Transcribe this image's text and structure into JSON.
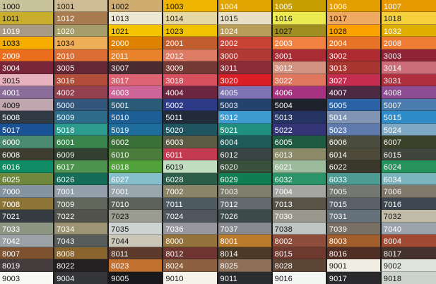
{
  "chart_data": {
    "type": "table",
    "description_of_layout": "RAL colour swatch grid, 8 columns by 23 rows, code label in top-left corner of each swatch",
    "grid_columns": 8,
    "grid_rows": 23,
    "separator_color": "#1c1c1c",
    "rows": [
      [
        {
          "code": "1000",
          "hex": "#C9C39B",
          "text": "dark"
        },
        {
          "code": "1001",
          "hex": "#D0BC94",
          "text": "dark"
        },
        {
          "code": "1002",
          "hex": "#CEAB6E",
          "text": "dark"
        },
        {
          "code": "1003",
          "hex": "#EFB500",
          "text": "dark"
        },
        {
          "code": "1004",
          "hex": "#E2A400",
          "text": "light"
        },
        {
          "code": "1005",
          "hex": "#C79D00",
          "text": "light"
        },
        {
          "code": "1006",
          "hex": "#E49E00",
          "text": "light"
        },
        {
          "code": "1007",
          "hex": "#E79A00",
          "text": "light"
        }
      ],
      [
        {
          "code": "1011",
          "hex": "#C9AE2D",
          "text": "dark"
        },
        {
          "code": "1012",
          "hex": "#A87C50",
          "text": "light"
        },
        {
          "code": "1013",
          "hex": "#EDE8D4",
          "text": "dark"
        },
        {
          "code": "1014",
          "hex": "#E6D8A4",
          "text": "dark"
        },
        {
          "code": "1015",
          "hex": "#E8DFC6",
          "text": "dark"
        },
        {
          "code": "1016",
          "hex": "#EDEB52",
          "text": "dark"
        },
        {
          "code": "1017",
          "hex": "#F0A960",
          "text": "dark"
        },
        {
          "code": "1018",
          "hex": "#F5D03C",
          "text": "dark"
        }
      ],
      [
        {
          "code": "1019",
          "hex": "#A89A84",
          "text": "light"
        },
        {
          "code": "1020",
          "hex": "#A59E6A",
          "text": "light"
        },
        {
          "code": "1021",
          "hex": "#F5C400",
          "text": "dark"
        },
        {
          "code": "1023",
          "hex": "#F0C300",
          "text": "dark"
        },
        {
          "code": "1024",
          "hex": "#B89C58",
          "text": "light"
        },
        {
          "code": "1027",
          "hex": "#A18E21",
          "text": "dark"
        },
        {
          "code": "1028",
          "hex": "#FCA200",
          "text": "dark"
        },
        {
          "code": "1032",
          "hex": "#DFAF00",
          "text": "light"
        }
      ],
      [
        {
          "code": "1033",
          "hex": "#F7AC00",
          "text": "dark"
        },
        {
          "code": "1034",
          "hex": "#EFAF58",
          "text": "dark"
        },
        {
          "code": "2000",
          "hex": "#DF8200",
          "text": "light"
        },
        {
          "code": "2001",
          "hex": "#C25E2E",
          "text": "light"
        },
        {
          "code": "2002",
          "hex": "#C84335",
          "text": "light"
        },
        {
          "code": "2003",
          "hex": "#F28143",
          "text": "light"
        },
        {
          "code": "2004",
          "hex": "#E77426",
          "text": "light"
        },
        {
          "code": "2008",
          "hex": "#EE7D33",
          "text": "light"
        }
      ],
      [
        {
          "code": "2009",
          "hex": "#EA6E1C",
          "text": "light"
        },
        {
          "code": "2010",
          "hex": "#DC6E35",
          "text": "light"
        },
        {
          "code": "2011",
          "hex": "#E8822B",
          "text": "light"
        },
        {
          "code": "2012",
          "hex": "#DD7B64",
          "text": "light"
        },
        {
          "code": "3000",
          "hex": "#B23A36",
          "text": "light"
        },
        {
          "code": "3001",
          "hex": "#A92C35",
          "text": "light"
        },
        {
          "code": "3002",
          "hex": "#AD2A2E",
          "text": "light"
        },
        {
          "code": "3003",
          "hex": "#8E2335",
          "text": "light"
        }
      ],
      [
        {
          "code": "3004",
          "hex": "#7A2638",
          "text": "light"
        },
        {
          "code": "3005",
          "hex": "#662735",
          "text": "light"
        },
        {
          "code": "3007",
          "hex": "#4A2B33",
          "text": "light"
        },
        {
          "code": "3009",
          "hex": "#763A35",
          "text": "light"
        },
        {
          "code": "3011",
          "hex": "#8C2C36",
          "text": "light"
        },
        {
          "code": "3012",
          "hex": "#D29380",
          "text": "light"
        },
        {
          "code": "3013",
          "hex": "#A83732",
          "text": "light"
        },
        {
          "code": "3014",
          "hex": "#CC6E7A",
          "text": "light"
        }
      ],
      [
        {
          "code": "3015",
          "hex": "#E6B0BC",
          "text": "dark"
        },
        {
          "code": "3016",
          "hex": "#B34E3B",
          "text": "light"
        },
        {
          "code": "3017",
          "hex": "#DC6472",
          "text": "light"
        },
        {
          "code": "3018",
          "hex": "#D8505E",
          "text": "light"
        },
        {
          "code": "3020",
          "hex": "#DA1F26",
          "text": "light"
        },
        {
          "code": "3022",
          "hex": "#E0765E",
          "text": "light"
        },
        {
          "code": "3027",
          "hex": "#C42C50",
          "text": "light"
        },
        {
          "code": "3031",
          "hex": "#B03040",
          "text": "light"
        }
      ],
      [
        {
          "code": "4001",
          "hex": "#8A6D99",
          "text": "light"
        },
        {
          "code": "4002",
          "hex": "#94404F",
          "text": "light"
        },
        {
          "code": "4003",
          "hex": "#CE6598",
          "text": "light"
        },
        {
          "code": "4004",
          "hex": "#6E2640",
          "text": "light"
        },
        {
          "code": "4005",
          "hex": "#7E74B4",
          "text": "light"
        },
        {
          "code": "4006",
          "hex": "#A53380",
          "text": "light"
        },
        {
          "code": "4007",
          "hex": "#4C2A43",
          "text": "light"
        },
        {
          "code": "4008",
          "hex": "#8E4C92",
          "text": "light"
        }
      ],
      [
        {
          "code": "4009",
          "hex": "#C0A6AE",
          "text": "dark"
        },
        {
          "code": "5000",
          "hex": "#33567C",
          "text": "light"
        },
        {
          "code": "5001",
          "hex": "#2A5B78",
          "text": "light"
        },
        {
          "code": "5002",
          "hex": "#2C3A87",
          "text": "light"
        },
        {
          "code": "5003",
          "hex": "#24426E",
          "text": "light"
        },
        {
          "code": "5004",
          "hex": "#1E222C",
          "text": "light"
        },
        {
          "code": "5005",
          "hex": "#2A62A5",
          "text": "light"
        },
        {
          "code": "5007",
          "hex": "#4A7CB0",
          "text": "light"
        }
      ],
      [
        {
          "code": "5008",
          "hex": "#2F3A44",
          "text": "light"
        },
        {
          "code": "5009",
          "hex": "#2C6C8A",
          "text": "light"
        },
        {
          "code": "5010",
          "hex": "#1D5F94",
          "text": "light"
        },
        {
          "code": "5011",
          "hex": "#222B3A",
          "text": "light"
        },
        {
          "code": "5012",
          "hex": "#3E9BD0",
          "text": "light"
        },
        {
          "code": "5013",
          "hex": "#253463",
          "text": "light"
        },
        {
          "code": "5014",
          "hex": "#8094B3",
          "text": "light"
        },
        {
          "code": "5015",
          "hex": "#2E8CC8",
          "text": "light"
        }
      ],
      [
        {
          "code": "5017",
          "hex": "#1A5296",
          "text": "light"
        },
        {
          "code": "5018",
          "hex": "#2B9C8E",
          "text": "light"
        },
        {
          "code": "5019",
          "hex": "#1F6D9C",
          "text": "light"
        },
        {
          "code": "5020",
          "hex": "#1E5560",
          "text": "light"
        },
        {
          "code": "5021",
          "hex": "#1F8F7F",
          "text": "light"
        },
        {
          "code": "5022",
          "hex": "#333577",
          "text": "light"
        },
        {
          "code": "5023",
          "hex": "#5F7AAD",
          "text": "light"
        },
        {
          "code": "5024",
          "hex": "#7FA8C4",
          "text": "light"
        }
      ],
      [
        {
          "code": "6000",
          "hex": "#4A8A70",
          "text": "light"
        },
        {
          "code": "6001",
          "hex": "#37854C",
          "text": "light"
        },
        {
          "code": "6002",
          "hex": "#3A7038",
          "text": "light"
        },
        {
          "code": "6003",
          "hex": "#5A5C44",
          "text": "light"
        },
        {
          "code": "6004",
          "hex": "#1E5A58",
          "text": "light"
        },
        {
          "code": "6005",
          "hex": "#1F5B43",
          "text": "light"
        },
        {
          "code": "6006",
          "hex": "#4B4D3E",
          "text": "light"
        },
        {
          "code": "6007",
          "hex": "#3B4229",
          "text": "light"
        }
      ],
      [
        {
          "code": "6008",
          "hex": "#3E3E30",
          "text": "light"
        },
        {
          "code": "6009",
          "hex": "#32402F",
          "text": "light"
        },
        {
          "code": "6010",
          "hex": "#4A7C3C",
          "text": "light"
        },
        {
          "code": "6011",
          "hex": "#C43B50",
          "text": "light"
        },
        {
          "code": "6012",
          "hex": "#384442",
          "text": "light"
        },
        {
          "code": "6013",
          "hex": "#8B8A69",
          "text": "light"
        },
        {
          "code": "6014",
          "hex": "#4E4A3A",
          "text": "light"
        },
        {
          "code": "6015",
          "hex": "#42453C",
          "text": "light"
        }
      ],
      [
        {
          "code": "6016",
          "hex": "#108C64",
          "text": "light"
        },
        {
          "code": "6017",
          "hex": "#4E9450",
          "text": "light"
        },
        {
          "code": "6018",
          "hex": "#52A23C",
          "text": "light"
        },
        {
          "code": "6019",
          "hex": "#C2DEC0",
          "text": "dark"
        },
        {
          "code": "6020",
          "hex": "#38503C",
          "text": "light"
        },
        {
          "code": "6021",
          "hex": "#9CBA9C",
          "text": "light"
        },
        {
          "code": "6022",
          "hex": "#3A382A",
          "text": "light"
        },
        {
          "code": "6024",
          "hex": "#28925E",
          "text": "light"
        }
      ],
      [
        {
          "code": "6025",
          "hex": "#70883E",
          "text": "light"
        },
        {
          "code": "6026",
          "hex": "#156C58",
          "text": "light"
        },
        {
          "code": "6027",
          "hex": "#86BECC",
          "text": "light"
        },
        {
          "code": "6028",
          "hex": "#2C5C4A",
          "text": "light"
        },
        {
          "code": "6029",
          "hex": "#107E52",
          "text": "light"
        },
        {
          "code": "6032",
          "hex": "#2A9468",
          "text": "light"
        },
        {
          "code": "6033",
          "hex": "#4C9C94",
          "text": "light"
        },
        {
          "code": "6034",
          "hex": "#7CB4BE",
          "text": "light"
        }
      ],
      [
        {
          "code": "7000",
          "hex": "#8494A0",
          "text": "light"
        },
        {
          "code": "7001",
          "hex": "#94A0AC",
          "text": "light"
        },
        {
          "code": "7001",
          "hex": "#9AA6AE",
          "text": "light"
        },
        {
          "code": "7002",
          "hex": "#8A8468",
          "text": "light"
        },
        {
          "code": "7003",
          "hex": "#7E7E6C",
          "text": "light"
        },
        {
          "code": "7004",
          "hex": "#A5A5A3",
          "text": "light"
        },
        {
          "code": "7005",
          "hex": "#747870",
          "text": "light"
        },
        {
          "code": "7006",
          "hex": "#80786A",
          "text": "light"
        }
      ],
      [
        {
          "code": "7008",
          "hex": "#8C7436",
          "text": "light"
        },
        {
          "code": "7009",
          "hex": "#62685C",
          "text": "light"
        },
        {
          "code": "7010",
          "hex": "#5C6258",
          "text": "light"
        },
        {
          "code": "7011",
          "hex": "#4E5A62",
          "text": "light"
        },
        {
          "code": "7012",
          "hex": "#626A70",
          "text": "light"
        },
        {
          "code": "7013",
          "hex": "#585448",
          "text": "light"
        },
        {
          "code": "7015",
          "hex": "#5A6068",
          "text": "light"
        },
        {
          "code": "7016",
          "hex": "#3E4852",
          "text": "light"
        }
      ],
      [
        {
          "code": "7021",
          "hex": "#343C42",
          "text": "light"
        },
        {
          "code": "7022",
          "hex": "#52524C",
          "text": "light"
        },
        {
          "code": "7023",
          "hex": "#9A9C90",
          "text": "dark"
        },
        {
          "code": "7024",
          "hex": "#50565E",
          "text": "light"
        },
        {
          "code": "7026",
          "hex": "#3C4A4A",
          "text": "light"
        },
        {
          "code": "7030",
          "hex": "#9A988C",
          "text": "light"
        },
        {
          "code": "7031",
          "hex": "#64707A",
          "text": "light"
        },
        {
          "code": "7032",
          "hex": "#C0BCA8",
          "text": "dark"
        }
      ],
      [
        {
          "code": "7033",
          "hex": "#8C9682",
          "text": "light"
        },
        {
          "code": "7034",
          "hex": "#9C9472",
          "text": "light"
        },
        {
          "code": "7035",
          "hex": "#CED4D2",
          "text": "dark"
        },
        {
          "code": "7036",
          "hex": "#98979E",
          "text": "light"
        },
        {
          "code": "7037",
          "hex": "#87898E",
          "text": "light"
        },
        {
          "code": "7038",
          "hex": "#C0C6C4",
          "text": "dark"
        },
        {
          "code": "7039",
          "hex": "#787064",
          "text": "light"
        },
        {
          "code": "7040",
          "hex": "#9BA3AD",
          "text": "light"
        }
      ],
      [
        {
          "code": "7042",
          "hex": "#9AA2A6",
          "text": "light"
        },
        {
          "code": "7043",
          "hex": "#565C5A",
          "text": "light"
        },
        {
          "code": "7044",
          "hex": "#CAC6B8",
          "text": "dark"
        },
        {
          "code": "8000",
          "hex": "#94743C",
          "text": "light"
        },
        {
          "code": "8001",
          "hex": "#BB7B2C",
          "text": "light"
        },
        {
          "code": "8002",
          "hex": "#8E4C3A",
          "text": "light"
        },
        {
          "code": "8003",
          "hex": "#A05E2C",
          "text": "light"
        },
        {
          "code": "8004",
          "hex": "#A04A34",
          "text": "light"
        }
      ],
      [
        {
          "code": "8007",
          "hex": "#7C5230",
          "text": "light"
        },
        {
          "code": "8008",
          "hex": "#8B6530",
          "text": "light"
        },
        {
          "code": "8011",
          "hex": "#5C3A2C",
          "text": "light"
        },
        {
          "code": "8012",
          "hex": "#6E3430",
          "text": "light"
        },
        {
          "code": "8014",
          "hex": "#4C3A28",
          "text": "light"
        },
        {
          "code": "8015",
          "hex": "#6E3A30",
          "text": "light"
        },
        {
          "code": "8016",
          "hex": "#502E24",
          "text": "light"
        },
        {
          "code": "8017",
          "hex": "#46322C",
          "text": "light"
        }
      ],
      [
        {
          "code": "8019",
          "hex": "#453C3E",
          "text": "light"
        },
        {
          "code": "8022",
          "hex": "#242022",
          "text": "light"
        },
        {
          "code": "8023",
          "hex": "#C2702E",
          "text": "light"
        },
        {
          "code": "8024",
          "hex": "#8C6040",
          "text": "light"
        },
        {
          "code": "8025",
          "hex": "#8E7058",
          "text": "light"
        },
        {
          "code": "8028",
          "hex": "#5E4636",
          "text": "light"
        },
        {
          "code": "9001",
          "hex": "#F0EEE2",
          "text": "dark"
        },
        {
          "code": "9002",
          "hex": "#E0E4DC",
          "text": "dark"
        }
      ],
      [
        {
          "code": "9003",
          "hex": "#F8F8F4",
          "text": "dark"
        },
        {
          "code": "9004",
          "hex": "#34363A",
          "text": "light"
        },
        {
          "code": "9005",
          "hex": "#1A1A1C",
          "text": "light"
        },
        {
          "code": "9010",
          "hex": "#F5F3EA",
          "text": "dark"
        },
        {
          "code": "9011",
          "hex": "#2A2C2E",
          "text": "light"
        },
        {
          "code": "9016",
          "hex": "#F4F6F4",
          "text": "dark"
        },
        {
          "code": "9017",
          "hex": "#2A2A2C",
          "text": "light"
        },
        {
          "code": "9018",
          "hex": "#CCD2CC",
          "text": "dark"
        }
      ]
    ]
  }
}
